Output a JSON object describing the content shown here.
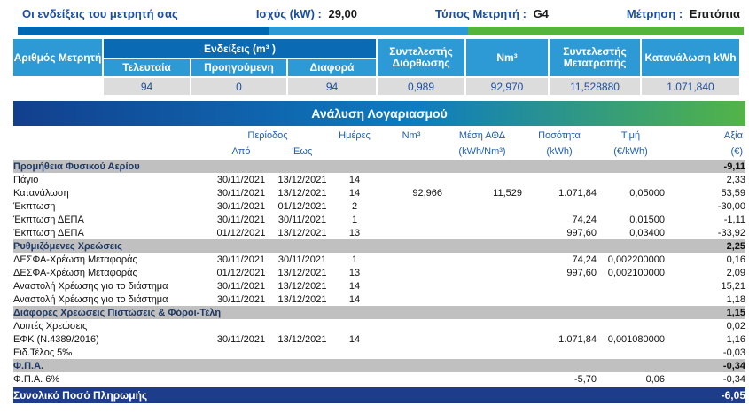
{
  "top_header": {
    "readings_label": "Οι ενδείξεις του μετρητή σας",
    "power_label": "Ισχύς (kW) :",
    "power_value": "29,00",
    "meter_type_label": "Τύπος Μετρητή :",
    "meter_type_value": "G4",
    "measurement_label": "Μέτρηση :",
    "measurement_value": "Επιτόπια"
  },
  "meter_table": {
    "meter_number_header": "Αριθμός Μετρητή",
    "readings_header": "Ενδείξεις (m³ )",
    "sub_last": "Τελευταία",
    "sub_previous": "Προηγούμενη",
    "sub_difference": "Διαφορά",
    "correction_header": "Συντελεστής Διόρθωσης",
    "nm3_header": "Nm³",
    "conversion_header": "Συντελεστής Μετατροπής",
    "consumption_header": "Κατανάλωση kWh",
    "meter_number_value": "",
    "last_value": "94",
    "previous_value": "0",
    "difference_value": "94",
    "correction_value": "0,989",
    "nm3_value": "92,970",
    "conversion_value": "11,528880",
    "consumption_value": "1.071,840"
  },
  "analysis": {
    "title": "Ανάλυση Λογαριασμού",
    "headers": {
      "period": "Περίοδος",
      "from": "Από",
      "to": "Έως",
      "days": "Ημέρες",
      "nm3": "Nm³",
      "athd_1": "Μέση ΑΘΔ",
      "athd_2": "(kWh/Nm³)",
      "qty_1": "Ποσότητα",
      "qty_2": "(kWh)",
      "price_1": "Τιμή",
      "price_2": "(€/kWh)",
      "value_1": "Αξία",
      "value_2": "(€)"
    },
    "rows": [
      {
        "type": "section",
        "label": "Προμήθεια Φυσικού Αερίου",
        "value": "-9,11"
      },
      {
        "type": "item",
        "label": "Πάγιο",
        "from": "30/11/2021",
        "to": "13/12/2021",
        "days": "14",
        "nm3": "",
        "athd": "",
        "qty": "",
        "price": "",
        "value": "2,33"
      },
      {
        "type": "item",
        "label": "Κατανάλωση",
        "from": "30/11/2021",
        "to": "13/12/2021",
        "days": "14",
        "nm3": "92,966",
        "athd": "11,529",
        "qty": "1.071,84",
        "price": "0,05000",
        "value": "53,59"
      },
      {
        "type": "item",
        "label": "Έκπτωση",
        "from": "30/11/2021",
        "to": "01/12/2021",
        "days": "2",
        "nm3": "",
        "athd": "",
        "qty": "",
        "price": "",
        "value": "-30,00"
      },
      {
        "type": "item",
        "label": "Έκπτωση ΔΕΠΑ",
        "from": "30/11/2021",
        "to": "30/11/2021",
        "days": "1",
        "nm3": "",
        "athd": "",
        "qty": "74,24",
        "price": "0,01500",
        "value": "-1,11"
      },
      {
        "type": "item",
        "label": "Έκπτωση ΔΕΠΑ",
        "from": "01/12/2021",
        "to": "13/12/2021",
        "days": "13",
        "nm3": "",
        "athd": "",
        "qty": "997,60",
        "price": "0,03400",
        "value": "-33,92"
      },
      {
        "type": "section",
        "label": "Ρυθμιζόμενες Χρεώσεις",
        "value": "2,25"
      },
      {
        "type": "item",
        "label": "ΔΕΣΦΑ-Χρέωση Μεταφοράς",
        "from": "30/11/2021",
        "to": "30/11/2021",
        "days": "1",
        "nm3": "",
        "athd": "",
        "qty": "74,24",
        "price": "0,002200000",
        "value": "0,16"
      },
      {
        "type": "item",
        "label": "ΔΕΣΦΑ-Χρέωση Μεταφοράς",
        "from": "01/12/2021",
        "to": "13/12/2021",
        "days": "13",
        "nm3": "",
        "athd": "",
        "qty": "997,60",
        "price": "0,002100000",
        "value": "2,09"
      },
      {
        "type": "item",
        "label": "Αναστολή Χρέωσης για το διάστημα",
        "from": "30/11/2021",
        "to": "13/12/2021",
        "days": "14",
        "nm3": "",
        "athd": "",
        "qty": "",
        "price": "",
        "value": "15,21"
      },
      {
        "type": "item",
        "label": "Αναστολή Χρέωσης για το διάστημα",
        "from": "30/11/2021",
        "to": "13/12/2021",
        "days": "14",
        "nm3": "",
        "athd": "",
        "qty": "",
        "price": "",
        "value": "1,18"
      },
      {
        "type": "section",
        "label": "Διάφορες Χρεώσεις Πιστώσεις & Φόροι-Τέλη",
        "value": "1,15"
      },
      {
        "type": "item",
        "label": "Λοιπές Χρεώσεις",
        "from": "",
        "to": "",
        "days": "",
        "nm3": "",
        "athd": "",
        "qty": "",
        "price": "",
        "value": "0,02"
      },
      {
        "type": "item",
        "label": "ΕΦΚ (Ν.4389/2016)",
        "from": "30/11/2021",
        "to": "13/12/2021",
        "days": "14",
        "nm3": "",
        "athd": "",
        "qty": "1.071,84",
        "price": "0,001080000",
        "value": "1,16"
      },
      {
        "type": "item",
        "label": "Ειδ.Τέλος 5‰",
        "from": "",
        "to": "",
        "days": "",
        "nm3": "",
        "athd": "",
        "qty": "",
        "price": "",
        "value": "-0,03"
      },
      {
        "type": "section",
        "label": "Φ.Π.Α.",
        "value": "-0,34"
      },
      {
        "type": "item",
        "label": "Φ.Π.Α. 6%",
        "from": "",
        "to": "",
        "days": "",
        "nm3": "",
        "athd": "",
        "qty": "-5,70",
        "price": "0,06",
        "value": "-0,34"
      }
    ],
    "total": {
      "label": "Συνολικό Ποσό Πληρωμής",
      "value": "-6,05"
    }
  },
  "colors": {
    "navy_text": "#1c4ea0",
    "dark_blue": "#0a6ab4",
    "light_blue": "#2d9ad5",
    "green": "#54b43c",
    "section_gray": "#c0c0c0",
    "value_gray": "#dcdcdc",
    "total_navy": "#1d3c8a",
    "header_text_blue": "#1e5fb0"
  }
}
